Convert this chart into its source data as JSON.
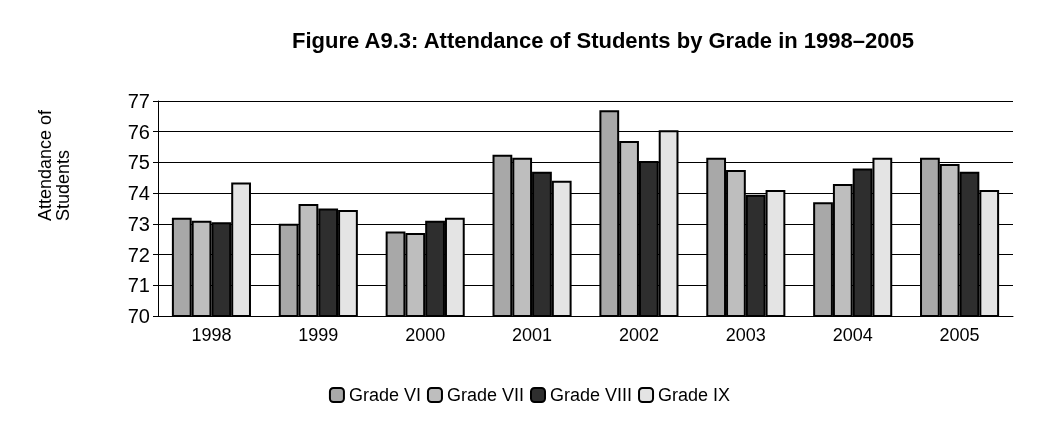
{
  "chart_data": {
    "type": "bar",
    "title": "Figure A9.3: Attendance of Students by Grade in 1998–2005",
    "ylabel": "Attendance of Students",
    "categories": [
      "1998",
      "1999",
      "2000",
      "2001",
      "2002",
      "2003",
      "2004",
      "2005"
    ],
    "series": [
      {
        "name": "Grade VI",
        "color": "#a8a8a8",
        "values": [
          73.2,
          73.0,
          72.75,
          75.25,
          76.7,
          75.15,
          73.7,
          75.15
        ]
      },
      {
        "name": "Grade VII",
        "color": "#bebebe",
        "values": [
          73.1,
          73.65,
          72.7,
          75.15,
          75.7,
          74.75,
          74.3,
          74.95
        ]
      },
      {
        "name": "Grade VIII",
        "color": "#2e2e2e",
        "values": [
          73.05,
          73.5,
          73.1,
          74.7,
          75.05,
          73.95,
          74.8,
          74.7
        ]
      },
      {
        "name": "Grade IX",
        "color": "#e4e4e4",
        "values": [
          74.35,
          73.45,
          73.2,
          74.4,
          76.05,
          74.1,
          75.15,
          74.1
        ]
      }
    ],
    "ylim": [
      70,
      77
    ],
    "yticks": [
      70,
      71,
      72,
      73,
      74,
      75,
      76,
      77
    ],
    "grid": "y",
    "legend": "bottom"
  }
}
